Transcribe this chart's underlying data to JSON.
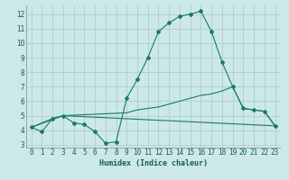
{
  "xlabel": "Humidex (Indice chaleur)",
  "bg_color": "#cce8e8",
  "grid_color": "#b0cece",
  "line_color": "#1a7a6a",
  "xlim": [
    -0.5,
    23.5
  ],
  "ylim": [
    2.8,
    12.6
  ],
  "yticks": [
    3,
    4,
    5,
    6,
    7,
    8,
    9,
    10,
    11,
    12
  ],
  "xticks": [
    0,
    1,
    2,
    3,
    4,
    5,
    6,
    7,
    8,
    9,
    10,
    11,
    12,
    13,
    14,
    15,
    16,
    17,
    18,
    19,
    20,
    21,
    22,
    23
  ],
  "line1_x": [
    0,
    1,
    2,
    3,
    4,
    5,
    6,
    7,
    8,
    9,
    10,
    11,
    12,
    13,
    14,
    15,
    16,
    17,
    18,
    19,
    20,
    21,
    22,
    23
  ],
  "line1_y": [
    4.2,
    3.9,
    4.8,
    5.0,
    4.5,
    4.4,
    3.9,
    3.1,
    3.2,
    6.2,
    7.5,
    9.0,
    10.8,
    11.4,
    11.85,
    12.0,
    12.2,
    10.8,
    8.7,
    7.0,
    5.5,
    5.4,
    5.3,
    4.3
  ],
  "line2_x": [
    0,
    2,
    3,
    9,
    10,
    11,
    12,
    13,
    14,
    15,
    16,
    17,
    18,
    19,
    20,
    21,
    22,
    23
  ],
  "line2_y": [
    4.2,
    4.8,
    5.0,
    5.2,
    5.4,
    5.5,
    5.6,
    5.8,
    6.0,
    6.2,
    6.4,
    6.5,
    6.7,
    7.0,
    5.5,
    5.4,
    5.3,
    4.3
  ],
  "line3_x": [
    0,
    3,
    23
  ],
  "line3_y": [
    4.2,
    5.0,
    4.3
  ]
}
